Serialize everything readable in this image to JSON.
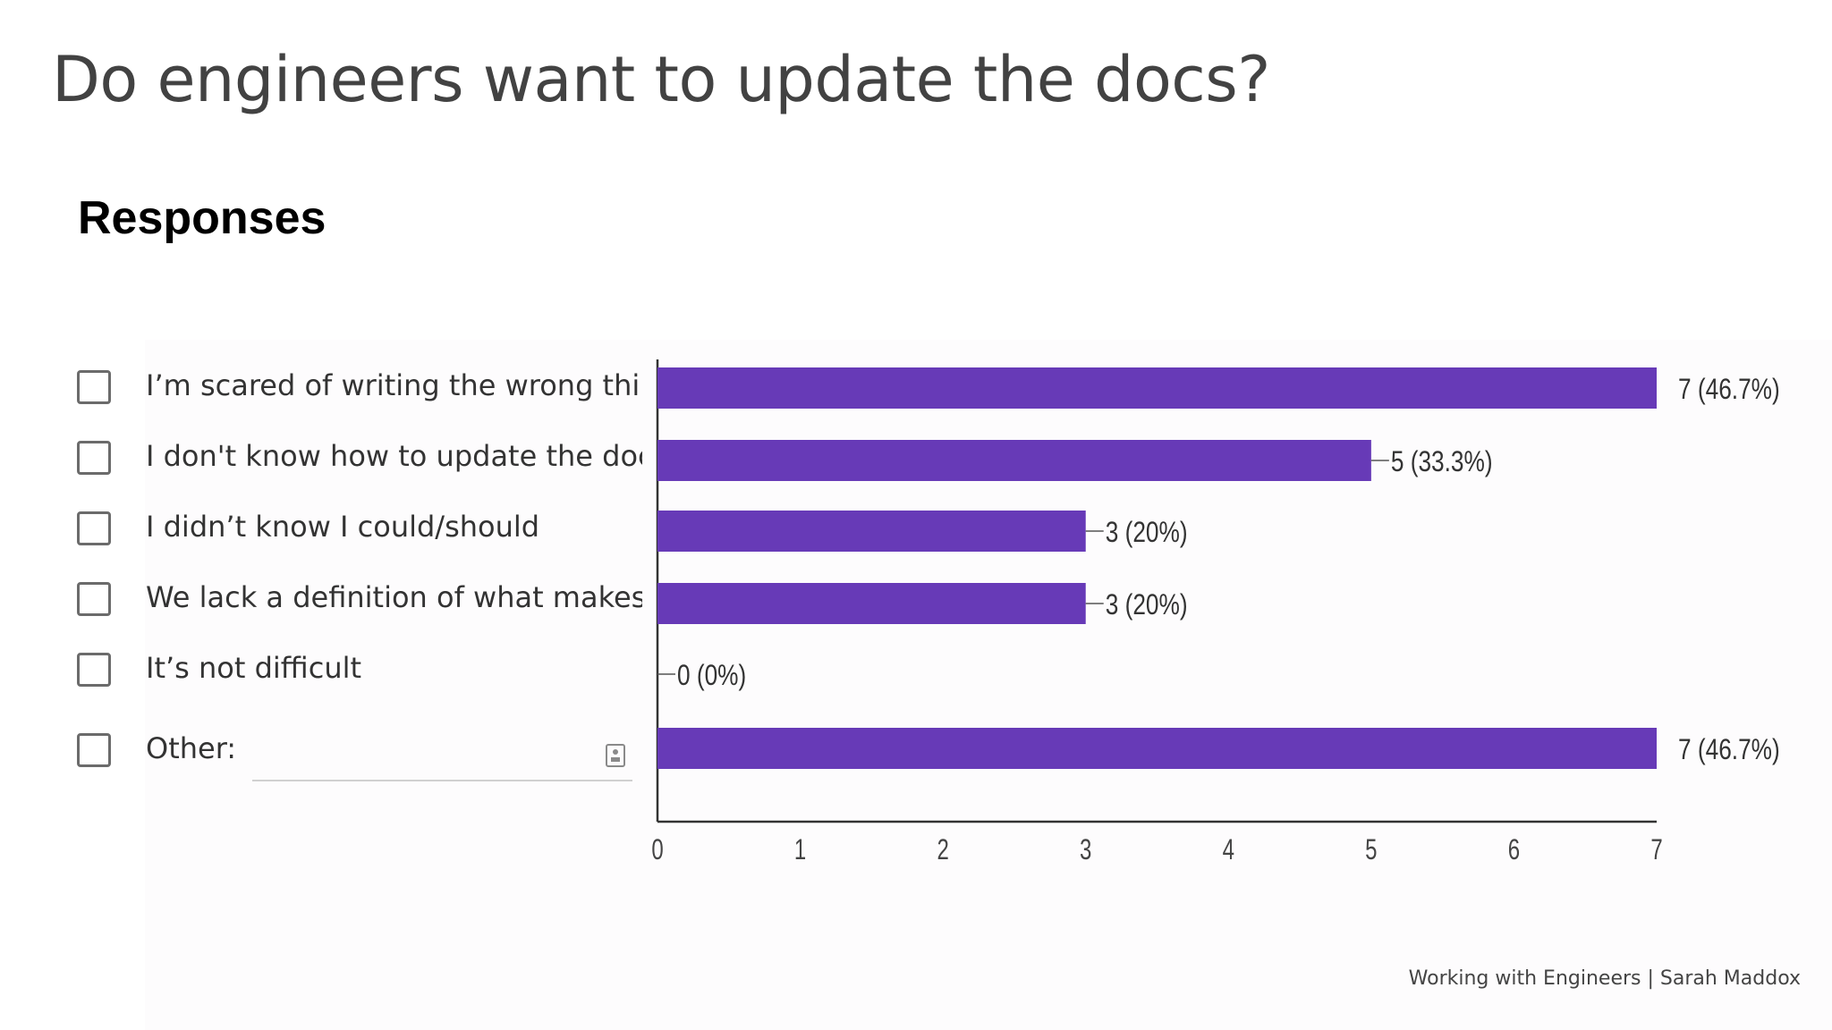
{
  "slide": {
    "title": "Do engineers want to update the docs?",
    "subtitle": "Responses",
    "footer": "Working with Engineers | Sarah Maddox"
  },
  "chart_data": {
    "type": "bar",
    "orientation": "horizontal",
    "categories": [
      "I’m scared of writing the wrong thing",
      "I don't know how to update the docs",
      "I didn’t know I could/should",
      "We lack a definition of what makes a v",
      "It’s not difficult",
      "Other:"
    ],
    "values": [
      7,
      5,
      3,
      3,
      0,
      7
    ],
    "data_labels": [
      "7 (46.7%)",
      "5 (33.3%)",
      "3 (20%)",
      "3 (20%)",
      "0 (0%)",
      "7 (46.7%)"
    ],
    "x_ticks": [
      "0",
      "1",
      "2",
      "3",
      "4",
      "5",
      "6",
      "7"
    ],
    "xlim": [
      0,
      7
    ],
    "bar_color": "#673ab7",
    "grid": false,
    "legend": "none"
  }
}
